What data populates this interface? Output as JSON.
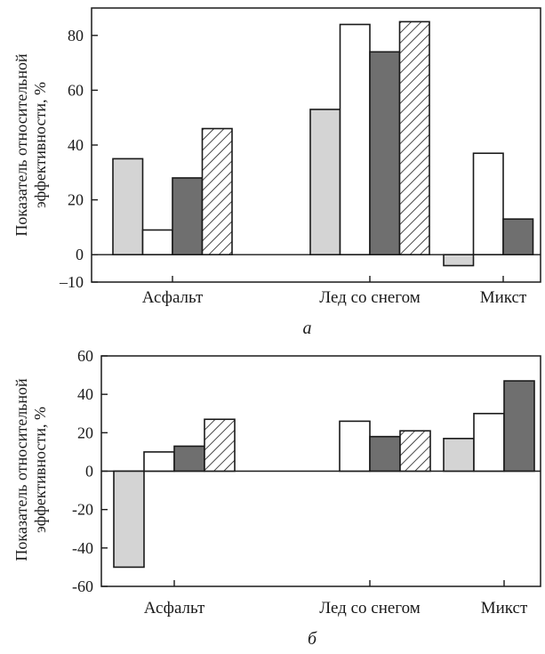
{
  "chart_data": [
    {
      "type": "bar",
      "panel_label": "а",
      "ylabel": "Показатель относительной эффективности, %",
      "ylabel_lines": [
        "Показатель относительной",
        "эффективности, %"
      ],
      "ylim": [
        -10,
        90
      ],
      "yticks": [
        80,
        60,
        40,
        20,
        0,
        -10
      ],
      "ytick_labels": [
        "80",
        "60",
        "40",
        "20",
        "0",
        "–10"
      ],
      "categories": [
        "Асфальт",
        "Лед со снегом",
        "Микст"
      ],
      "series": [
        {
          "fill": "light-gray",
          "values": [
            35,
            53,
            -4
          ]
        },
        {
          "fill": "white",
          "values": [
            9,
            84,
            37
          ]
        },
        {
          "fill": "dark-gray",
          "values": [
            28,
            74,
            13
          ]
        },
        {
          "fill": "hatched",
          "values": [
            46,
            85,
            null
          ]
        }
      ]
    },
    {
      "type": "bar",
      "panel_label": "б",
      "ylabel": "Показатель относительной эффективности, %",
      "ylabel_lines": [
        "Показатель относительной",
        "эффективности, %"
      ],
      "ylim": [
        -60,
        60
      ],
      "yticks": [
        60,
        40,
        20,
        0,
        -20,
        -40,
        -60
      ],
      "ytick_labels": [
        "60",
        "40",
        "20",
        "0",
        "-20",
        "-40",
        "-60"
      ],
      "categories": [
        "Асфальт",
        "Лед со снегом",
        "Микст"
      ],
      "series": [
        {
          "fill": "light-gray",
          "values": [
            -50,
            null,
            17
          ]
        },
        {
          "fill": "white",
          "values": [
            10,
            26,
            30
          ]
        },
        {
          "fill": "dark-gray",
          "values": [
            13,
            18,
            47
          ]
        },
        {
          "fill": "hatched",
          "values": [
            27,
            21,
            null
          ]
        }
      ]
    }
  ],
  "colors": {
    "light-gray": "#d4d4d4",
    "white": "#ffffff",
    "dark-gray": "#6f6f6f",
    "hatched": "url(#hatch)",
    "stroke": "#1a1a1a"
  }
}
